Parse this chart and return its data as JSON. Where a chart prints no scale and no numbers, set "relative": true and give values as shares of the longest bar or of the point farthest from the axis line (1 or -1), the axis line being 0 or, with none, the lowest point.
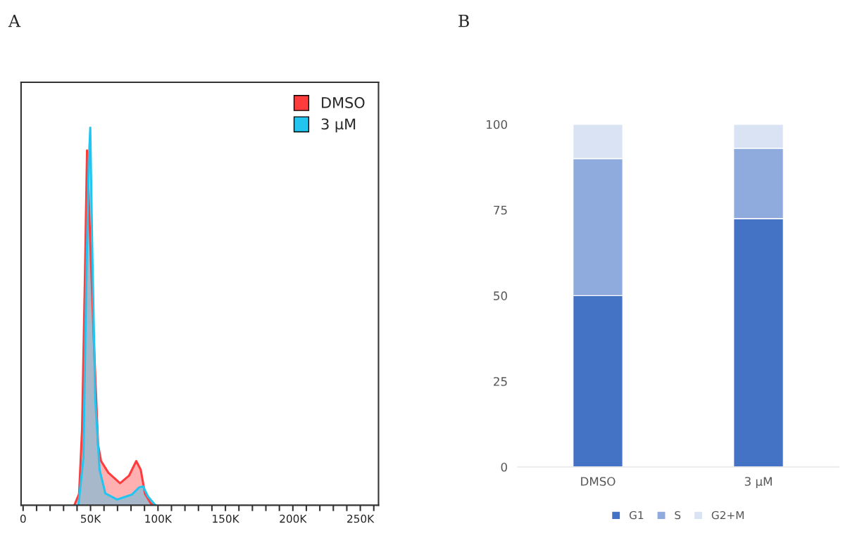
{
  "chart_data": [
    {
      "type": "area",
      "title": "A",
      "relative": true,
      "legend": "top right",
      "grid": false,
      "tick_labels": "x",
      "xlim": [
        -1500,
        263500
      ],
      "xticks": [
        0,
        {
          "value": 10000,
          "label": null
        },
        {
          "value": 20000,
          "label": null
        },
        {
          "value": 30000,
          "label": null
        },
        {
          "value": 40000,
          "label": null
        },
        {
          "value": 50000,
          "label": "50K"
        },
        {
          "value": 60000,
          "label": null
        },
        {
          "value": 70000,
          "label": null
        },
        {
          "value": 80000,
          "label": null
        },
        {
          "value": 90000,
          "label": null
        },
        {
          "value": 100000,
          "label": "100K"
        },
        {
          "value": 110000,
          "label": null
        },
        {
          "value": 120000,
          "label": null
        },
        {
          "value": 130000,
          "label": null
        },
        {
          "value": 140000,
          "label": null
        },
        {
          "value": 150000,
          "label": "150K"
        },
        {
          "value": 160000,
          "label": null
        },
        {
          "value": 170000,
          "label": null
        },
        {
          "value": 180000,
          "label": null
        },
        {
          "value": 190000,
          "label": null
        },
        {
          "value": 200000,
          "label": "200K"
        },
        {
          "value": 210000,
          "label": null
        },
        {
          "value": 220000,
          "label": null
        },
        {
          "value": 230000,
          "label": null
        },
        {
          "value": 240000,
          "label": null
        },
        {
          "value": 250000,
          "label": "250K"
        },
        {
          "value": 260000,
          "label": null
        }
      ],
      "series": [
        {
          "name": "DMSO",
          "color": "#ff3b3b",
          "x": [
            38000,
            41500,
            43700,
            45800,
            47400,
            52400,
            55600,
            57800,
            63200,
            71900,
            78500,
            83900,
            87200,
            90400,
            94800,
            98000
          ],
          "values": [
            0,
            0.03,
            0.2,
            0.6,
            0.94,
            0.44,
            0.16,
            0.117,
            0.086,
            0.058,
            0.078,
            0.117,
            0.094,
            0.03,
            0.004,
            0
          ]
        },
        {
          "name": "3 µM",
          "color": "#22c4f0",
          "x": [
            41000,
            44700,
            46900,
            48700,
            49800,
            51300,
            53500,
            56700,
            61000,
            69800,
            80600,
            86000,
            88900,
            92600,
            98000
          ],
          "values": [
            0,
            0.125,
            0.6,
            0.91,
            1.0,
            0.674,
            0.28,
            0.094,
            0.031,
            0.015,
            0.028,
            0.047,
            0.05,
            0.023,
            0
          ]
        }
      ]
    },
    {
      "type": "bar",
      "title": "B",
      "stacked": true,
      "legend": "bottom",
      "grid": false,
      "categories": [
        "DMSO",
        "3 µM"
      ],
      "ylim": [
        0,
        100
      ],
      "yticks": [
        0,
        25,
        50,
        75,
        100
      ],
      "series": [
        {
          "name": "G1",
          "color": "#4472c4",
          "values": [
            50,
            72.5
          ]
        },
        {
          "name": "S",
          "color": "#8faadc",
          "values": [
            40,
            20.5
          ]
        },
        {
          "name": "G2+M",
          "color": "#dae3f3",
          "values": [
            10,
            7
          ]
        }
      ]
    }
  ]
}
